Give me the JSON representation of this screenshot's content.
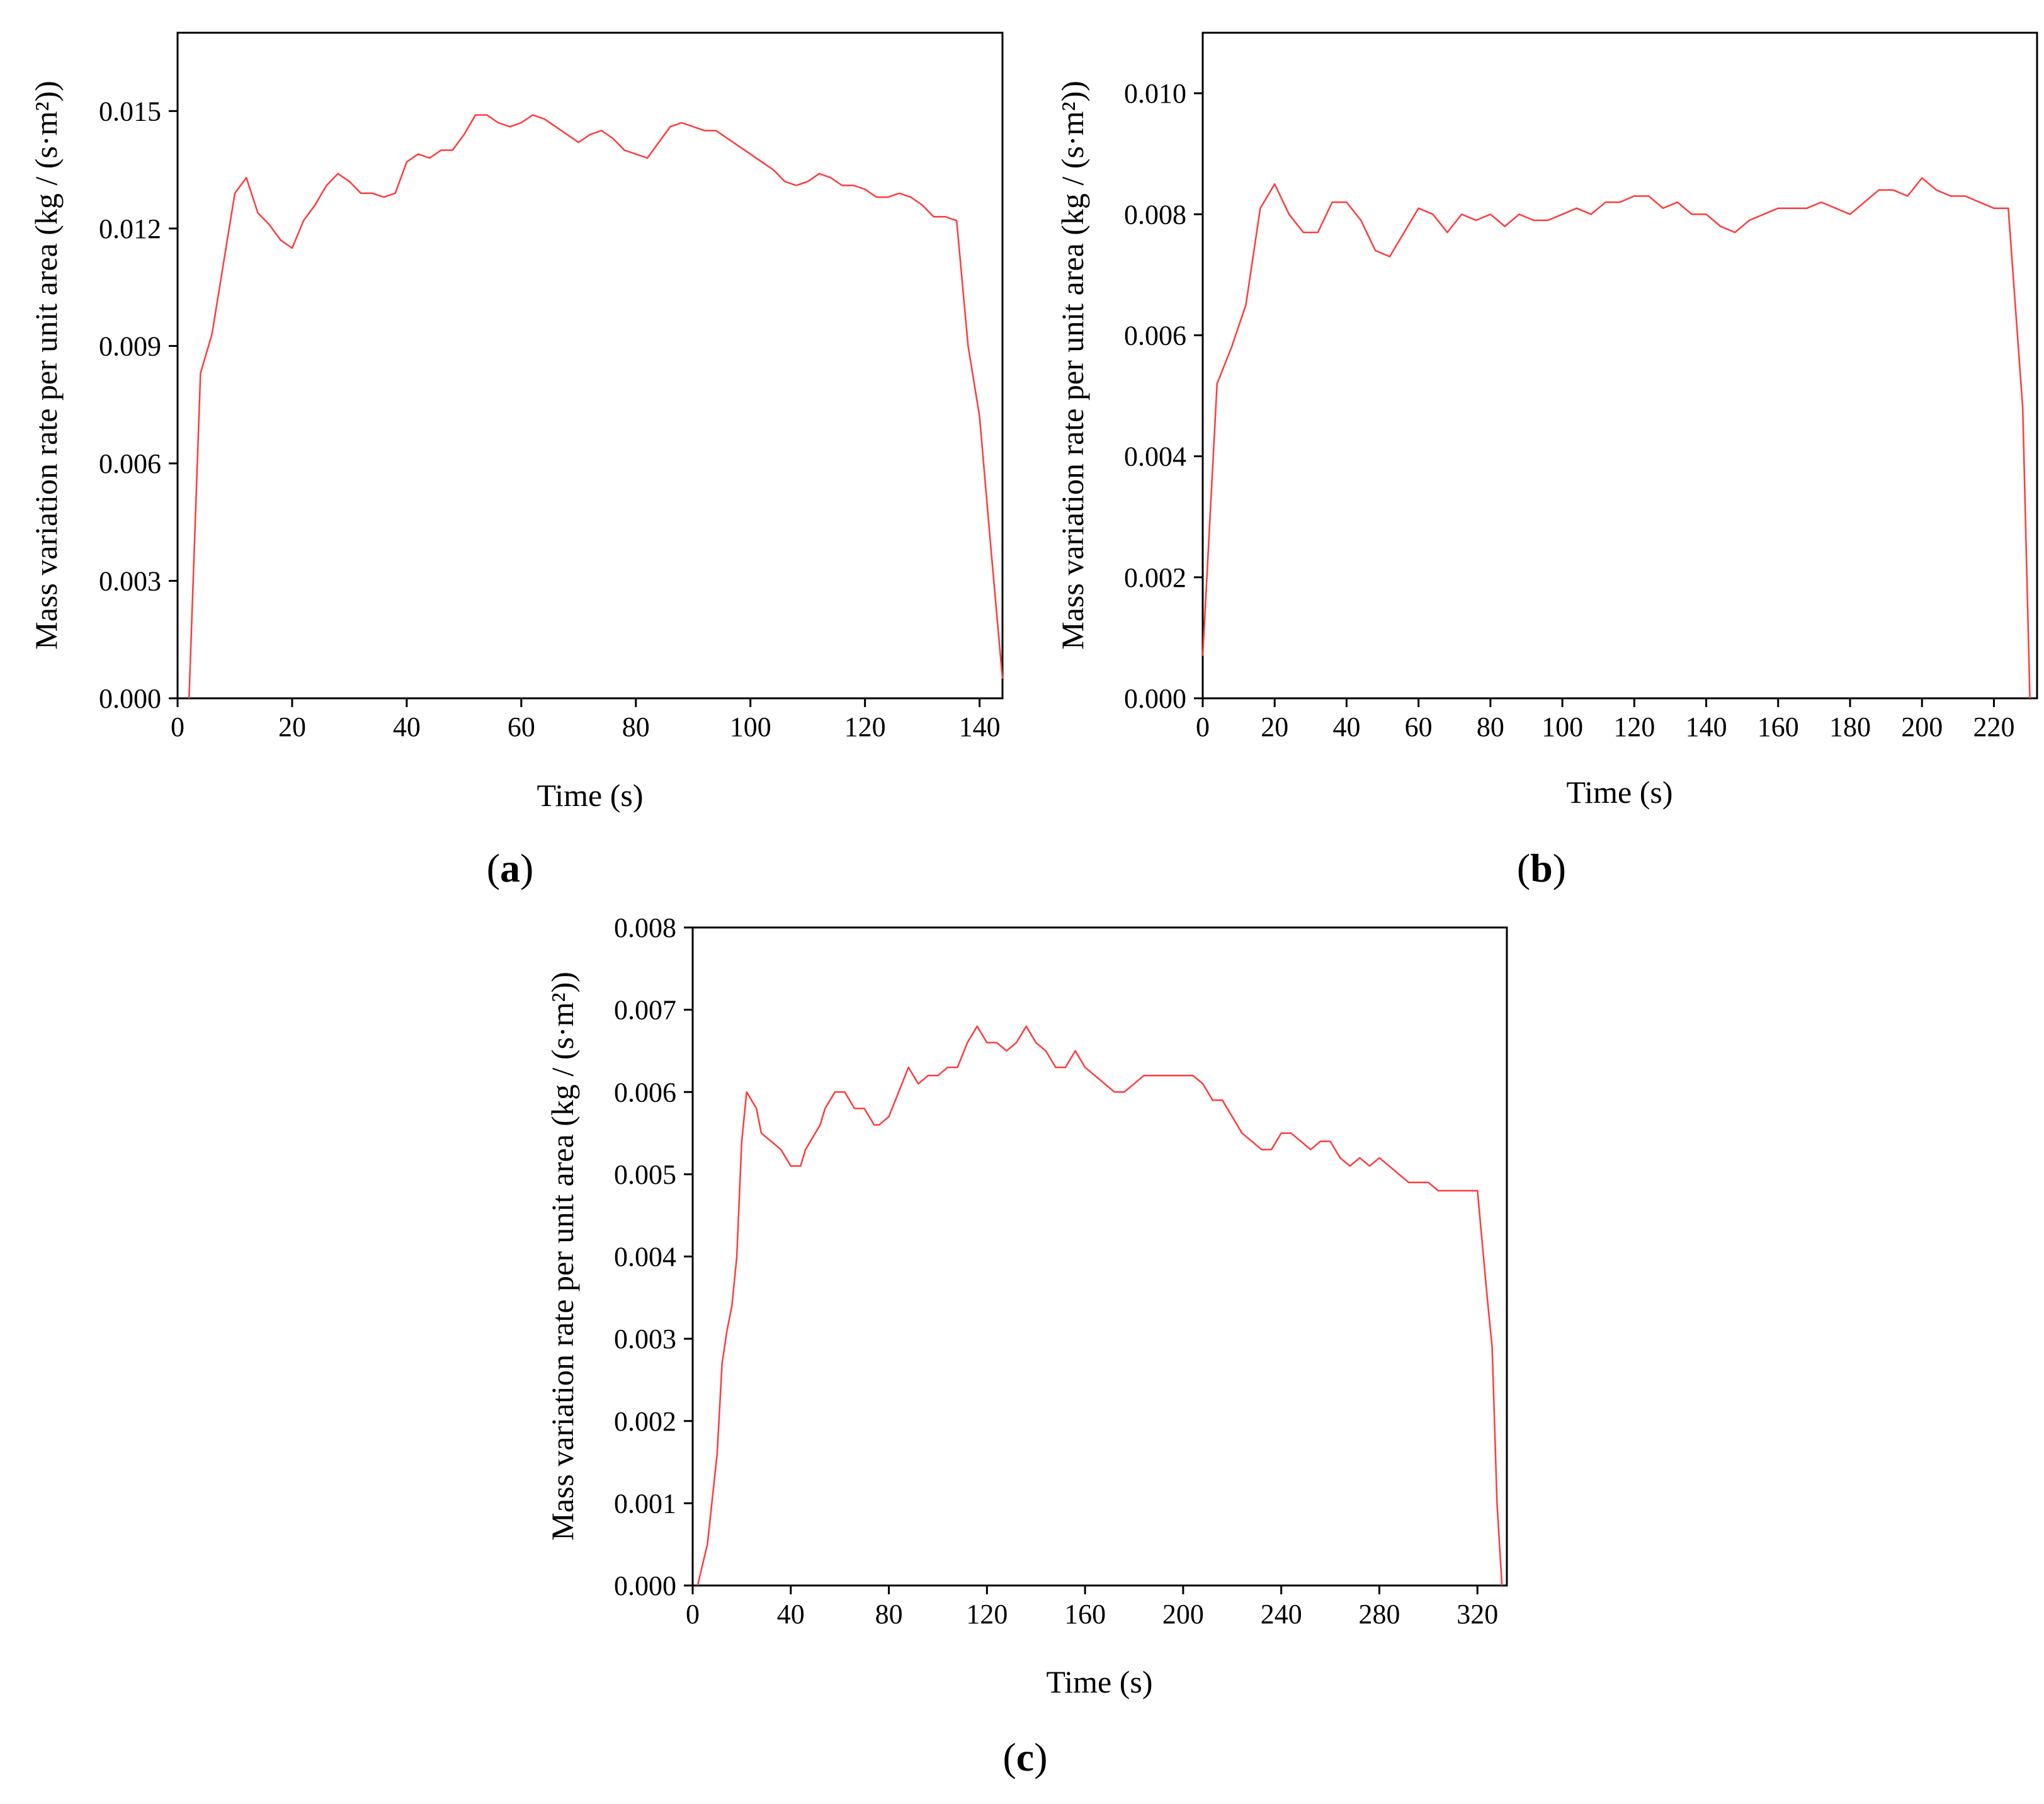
{
  "figure": {
    "panels": [
      {
        "label_open": "(",
        "label_letter": "a",
        "label_close": ")"
      },
      {
        "label_open": "(",
        "label_letter": "b",
        "label_close": ")"
      },
      {
        "label_open": "(",
        "label_letter": "c",
        "label_close": ")"
      }
    ]
  },
  "chart_data": [
    {
      "type": "line",
      "panel": "a",
      "xlabel": "Time (s)",
      "ylabel": "Mass variation rate per unit area (kg / (s·m²))",
      "xlim": [
        0,
        144
      ],
      "ylim": [
        0,
        0.017
      ],
      "xticks": [
        0,
        20,
        40,
        60,
        80,
        100,
        120,
        140
      ],
      "xtick_labels": [
        "0",
        "20",
        "40",
        "60",
        "80",
        "100",
        "120",
        "140"
      ],
      "yticks": [
        0,
        0.003,
        0.006,
        0.009,
        0.012,
        0.015
      ],
      "ytick_labels": [
        "0.000",
        "0.003",
        "0.006",
        "0.009",
        "0.012",
        "0.015"
      ],
      "grid": false,
      "line_color": "#ff3b3b",
      "series": [
        {
          "x": [
            2,
            4,
            6,
            8,
            10,
            12,
            14,
            16,
            18,
            20,
            22,
            24,
            26,
            28,
            30,
            32,
            34,
            36,
            38,
            40,
            42,
            44,
            46,
            48,
            50,
            52,
            54,
            56,
            58,
            60,
            62,
            64,
            66,
            68,
            70,
            72,
            74,
            76,
            78,
            80,
            82,
            84,
            86,
            88,
            90,
            92,
            94,
            96,
            98,
            100,
            102,
            104,
            106,
            108,
            110,
            112,
            114,
            116,
            118,
            120,
            122,
            124,
            126,
            128,
            130,
            132,
            134,
            136,
            138,
            140,
            142,
            144
          ],
          "y": [
            0,
            0.0083,
            0.0093,
            0.0111,
            0.0129,
            0.0133,
            0.0124,
            0.0121,
            0.0117,
            0.0115,
            0.0122,
            0.0126,
            0.0131,
            0.0134,
            0.0132,
            0.0129,
            0.0129,
            0.0128,
            0.0129,
            0.0137,
            0.0139,
            0.0138,
            0.014,
            0.014,
            0.0144,
            0.0149,
            0.0149,
            0.0147,
            0.0146,
            0.0147,
            0.0149,
            0.0148,
            0.0146,
            0.0144,
            0.0142,
            0.0144,
            0.0145,
            0.0143,
            0.014,
            0.0139,
            0.0138,
            0.0142,
            0.0146,
            0.0147,
            0.0146,
            0.0145,
            0.0145,
            0.0143,
            0.0141,
            0.0139,
            0.0137,
            0.0135,
            0.0132,
            0.0131,
            0.0132,
            0.0134,
            0.0133,
            0.0131,
            0.0131,
            0.013,
            0.0128,
            0.0128,
            0.0129,
            0.0128,
            0.0126,
            0.0123,
            0.0123,
            0.0122,
            0.009,
            0.0072,
            0.0038,
            0.0005
          ]
        }
      ]
    },
    {
      "type": "line",
      "panel": "b",
      "xlabel": "Time (s)",
      "ylabel": "Mass variation rate per unit area (kg / (s·m²))",
      "xlim": [
        0,
        232
      ],
      "ylim": [
        0,
        0.011
      ],
      "xticks": [
        0,
        20,
        40,
        60,
        80,
        100,
        120,
        140,
        160,
        180,
        200,
        220
      ],
      "xtick_labels": [
        "0",
        "20",
        "40",
        "60",
        "80",
        "100",
        "120",
        "140",
        "160",
        "180",
        "200",
        "220"
      ],
      "yticks": [
        0,
        0.002,
        0.004,
        0.006,
        0.008,
        0.01
      ],
      "ytick_labels": [
        "0.000",
        "0.002",
        "0.004",
        "0.006",
        "0.008",
        "0.010"
      ],
      "grid": false,
      "line_color": "#ff3b3b",
      "series": [
        {
          "x": [
            0,
            4,
            8,
            12,
            16,
            20,
            24,
            28,
            32,
            36,
            40,
            44,
            48,
            52,
            56,
            60,
            64,
            68,
            72,
            76,
            80,
            84,
            88,
            92,
            96,
            100,
            104,
            108,
            112,
            116,
            120,
            124,
            128,
            132,
            136,
            140,
            144,
            148,
            152,
            156,
            160,
            164,
            168,
            172,
            176,
            180,
            184,
            188,
            192,
            196,
            200,
            204,
            208,
            212,
            216,
            220,
            224,
            228,
            230
          ],
          "y": [
            0.0007,
            0.0052,
            0.0058,
            0.0065,
            0.0081,
            0.0085,
            0.008,
            0.0077,
            0.0077,
            0.0082,
            0.0082,
            0.0079,
            0.0074,
            0.0073,
            0.0077,
            0.0081,
            0.008,
            0.0077,
            0.008,
            0.0079,
            0.008,
            0.0078,
            0.008,
            0.0079,
            0.0079,
            0.008,
            0.0081,
            0.008,
            0.0082,
            0.0082,
            0.0083,
            0.0083,
            0.0081,
            0.0082,
            0.008,
            0.008,
            0.0078,
            0.0077,
            0.0079,
            0.008,
            0.0081,
            0.0081,
            0.0081,
            0.0082,
            0.0081,
            0.008,
            0.0082,
            0.0084,
            0.0084,
            0.0083,
            0.0086,
            0.0084,
            0.0083,
            0.0083,
            0.0082,
            0.0081,
            0.0081,
            0.0048,
            0.0
          ]
        }
      ]
    },
    {
      "type": "line",
      "panel": "c",
      "xlabel": "Time (s)",
      "ylabel": "Mass variation rate per unit area (kg / (s·m²))",
      "xlim": [
        0,
        332
      ],
      "ylim": [
        0,
        0.008
      ],
      "xticks": [
        0,
        40,
        80,
        120,
        160,
        200,
        240,
        280,
        320
      ],
      "xtick_labels": [
        "0",
        "40",
        "80",
        "120",
        "160",
        "200",
        "240",
        "280",
        "320"
      ],
      "yticks": [
        0,
        0.001,
        0.002,
        0.003,
        0.004,
        0.005,
        0.006,
        0.007,
        0.008
      ],
      "ytick_labels": [
        "0.000",
        "0.001",
        "0.002",
        "0.003",
        "0.004",
        "0.005",
        "0.006",
        "0.007",
        "0.008"
      ],
      "grid": false,
      "line_color": "#ff3b3b",
      "series": [
        {
          "x": [
            2,
            6,
            10,
            12,
            14,
            16,
            18,
            20,
            22,
            26,
            28,
            32,
            36,
            40,
            44,
            46,
            48,
            52,
            54,
            58,
            62,
            66,
            70,
            74,
            76,
            80,
            84,
            88,
            92,
            96,
            100,
            104,
            108,
            112,
            116,
            120,
            124,
            128,
            132,
            136,
            140,
            144,
            148,
            152,
            156,
            160,
            164,
            168,
            172,
            176,
            180,
            184,
            188,
            192,
            196,
            200,
            204,
            208,
            212,
            216,
            220,
            224,
            228,
            232,
            236,
            240,
            244,
            248,
            252,
            256,
            260,
            264,
            268,
            272,
            276,
            280,
            284,
            288,
            292,
            296,
            300,
            304,
            308,
            312,
            316,
            320,
            324,
            326,
            328,
            330
          ],
          "y": [
            0,
            0.0005,
            0.0016,
            0.0027,
            0.0031,
            0.0034,
            0.004,
            0.0054,
            0.006,
            0.0058,
            0.0055,
            0.0054,
            0.0053,
            0.0051,
            0.0051,
            0.0053,
            0.0054,
            0.0056,
            0.0058,
            0.006,
            0.006,
            0.0058,
            0.0058,
            0.0056,
            0.0056,
            0.0057,
            0.006,
            0.0063,
            0.0061,
            0.0062,
            0.0062,
            0.0063,
            0.0063,
            0.0066,
            0.0068,
            0.0066,
            0.0066,
            0.0065,
            0.0066,
            0.0068,
            0.0066,
            0.0065,
            0.0063,
            0.0063,
            0.0065,
            0.0063,
            0.0062,
            0.0061,
            0.006,
            0.006,
            0.0061,
            0.0062,
            0.0062,
            0.0062,
            0.0062,
            0.0062,
            0.0062,
            0.0061,
            0.0059,
            0.0059,
            0.0057,
            0.0055,
            0.0054,
            0.0053,
            0.0053,
            0.0055,
            0.0055,
            0.0054,
            0.0053,
            0.0054,
            0.0054,
            0.0052,
            0.0051,
            0.0052,
            0.0051,
            0.0052,
            0.0051,
            0.005,
            0.0049,
            0.0049,
            0.0049,
            0.0048,
            0.0048,
            0.0048,
            0.0048,
            0.0048,
            0.0035,
            0.0029,
            0.001,
            0.0
          ]
        }
      ]
    }
  ]
}
